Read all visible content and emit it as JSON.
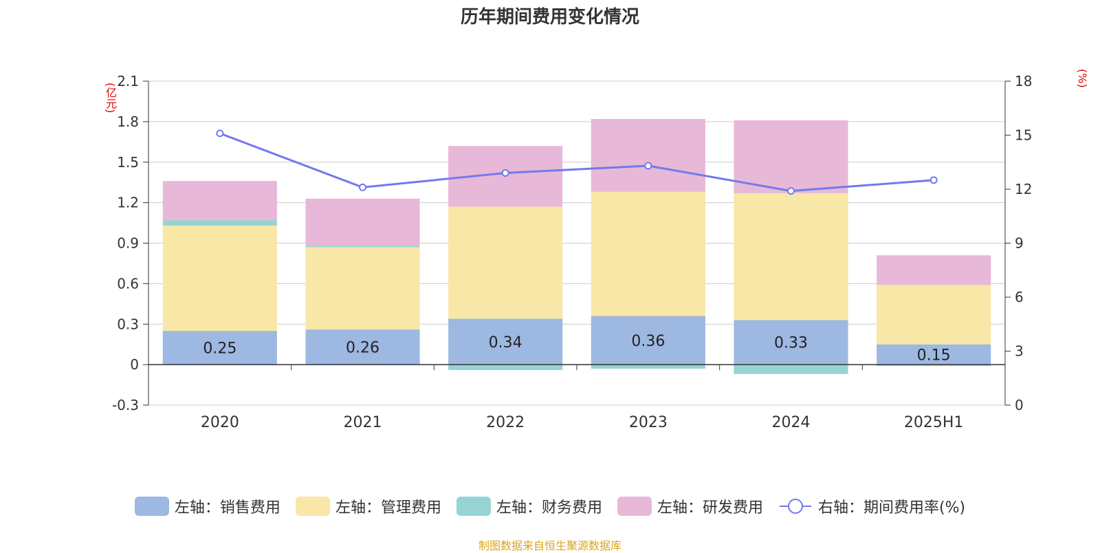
{
  "title": "历年期间费用变化情况",
  "source": "制图数据来自恒生聚源数据库",
  "chart_data": {
    "type": "bar",
    "stacked": true,
    "categories": [
      "2020",
      "2021",
      "2022",
      "2023",
      "2024",
      "2025H1"
    ],
    "left_axis": {
      "unit": "(亿元)",
      "ylim": [
        -0.3,
        2.1
      ],
      "ticks": [
        "2.1",
        "1.8",
        "1.5",
        "1.2",
        "0.9",
        "0.6",
        "0.3",
        "0",
        "-0.3"
      ]
    },
    "right_axis": {
      "unit": "(%)",
      "ylim": [
        0,
        18
      ],
      "ticks": [
        "18",
        "15",
        "12",
        "9",
        "6",
        "3",
        "0"
      ]
    },
    "series": [
      {
        "name": "左轴：销售费用",
        "axis": "left",
        "type": "bar",
        "color": "#9db8e1",
        "values": [
          0.25,
          0.26,
          0.34,
          0.36,
          0.33,
          0.15
        ],
        "labels": [
          "0.25",
          "0.26",
          "0.34",
          "0.36",
          "0.33",
          "0.15"
        ]
      },
      {
        "name": "左轴：管理费用",
        "axis": "left",
        "type": "bar",
        "color": "#f8e7a6",
        "values": [
          0.78,
          0.61,
          0.83,
          0.92,
          0.94,
          0.44
        ]
      },
      {
        "name": "左轴：财务费用",
        "axis": "left",
        "type": "bar",
        "color": "#96d4d4",
        "values": [
          0.04,
          0.01,
          -0.04,
          -0.03,
          -0.07,
          -0.01
        ]
      },
      {
        "name": "左轴：研发费用",
        "axis": "left",
        "type": "bar",
        "color": "#e8b8d8",
        "values": [
          0.29,
          0.35,
          0.45,
          0.54,
          0.54,
          0.22
        ]
      },
      {
        "name": "右轴：期间费用率(%)",
        "axis": "right",
        "type": "line",
        "color": "#7378ef",
        "values": [
          15.1,
          12.1,
          12.9,
          13.3,
          11.9,
          12.5
        ]
      }
    ],
    "grid": true,
    "legend_position": "bottom"
  }
}
